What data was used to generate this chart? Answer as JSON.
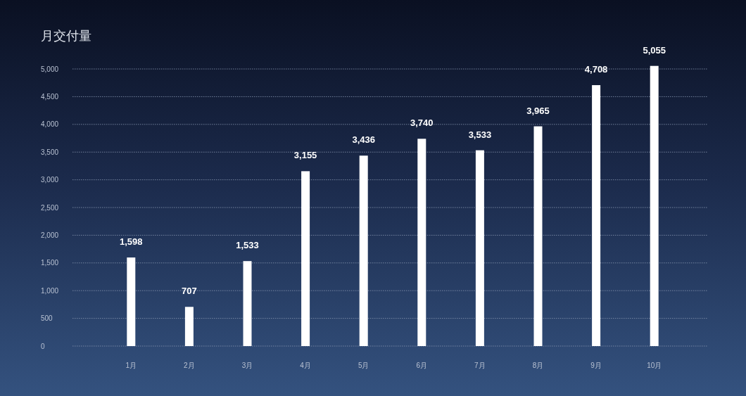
{
  "chart_data": {
    "type": "bar",
    "title": "月交付量",
    "categories": [
      "1月",
      "2月",
      "3月",
      "4月",
      "5月",
      "6月",
      "7月",
      "8月",
      "9月",
      "10月"
    ],
    "values": [
      1598,
      707,
      1533,
      3155,
      3436,
      3740,
      3533,
      3965,
      4708,
      5055
    ],
    "value_labels": [
      "1,598",
      "707",
      "1,533",
      "3,155",
      "3,436",
      "3,740",
      "3,533",
      "3,965",
      "4,708",
      "5,055"
    ],
    "color": "#ffffff",
    "ylim": [
      0,
      5055
    ],
    "yticks": [
      {
        "value": 0,
        "label": "0"
      },
      {
        "value": 500,
        "label": "500"
      },
      {
        "value": 1000,
        "label": "1,000"
      },
      {
        "value": 1500,
        "label": "1,500"
      },
      {
        "value": 2000,
        "label": "2,000"
      },
      {
        "value": 2500,
        "label": "2,500"
      },
      {
        "value": 3000,
        "label": "3,000"
      },
      {
        "value": 3500,
        "label": "3,500"
      },
      {
        "value": 4000,
        "label": "4,000"
      },
      {
        "value": 4500,
        "label": "4,500"
      },
      {
        "value": 5000,
        "label": "5,000"
      }
    ],
    "grid": "y"
  }
}
